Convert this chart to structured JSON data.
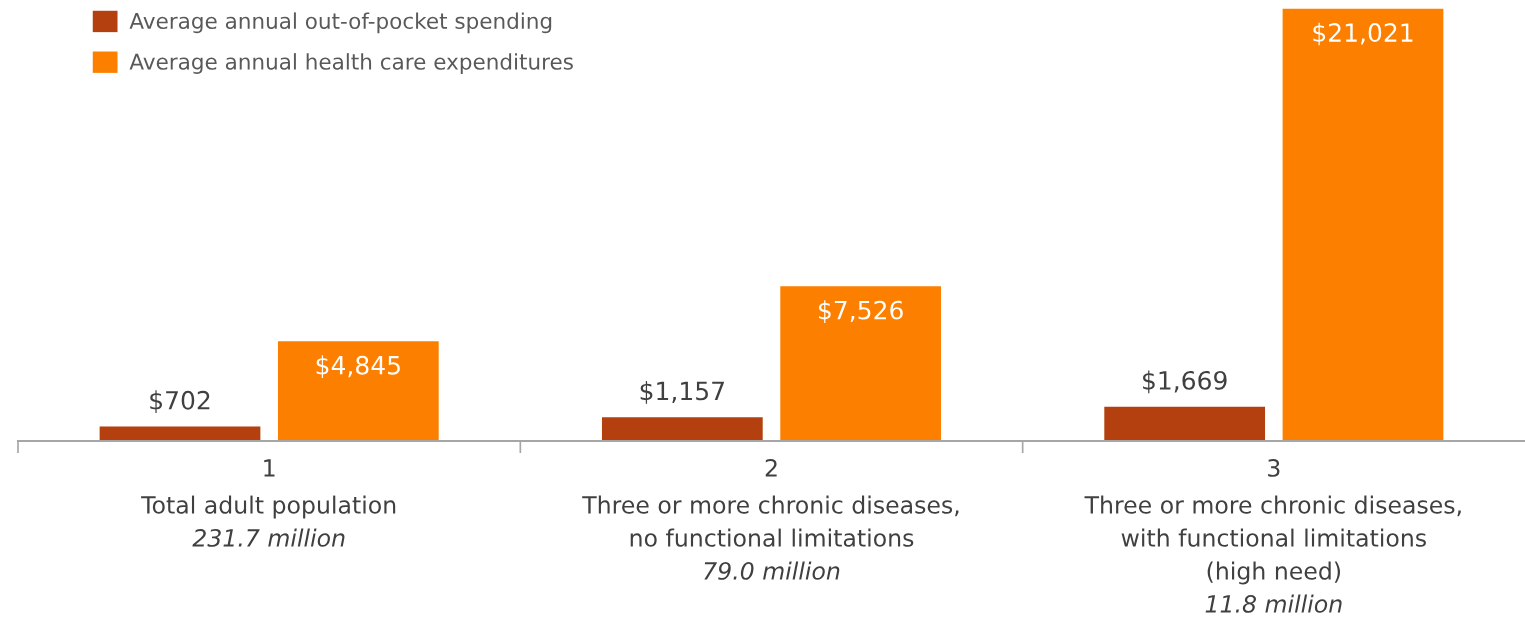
{
  "chart_data": {
    "type": "bar",
    "categories": [
      "1\nTotal adult population\n231.7 million",
      "2\nThree or more chronic diseases,\nno functional limitations\n79.0 million",
      "3\nThree or more chronic diseases,\nwith functional limitations\n(high need)\n11.8 million"
    ],
    "series": [
      {
        "name": "Average annual out-of-pocket spending",
        "color": "#b3400e",
        "values": [
          702,
          1157,
          1669
        ],
        "value_labels": [
          "$702",
          "$1,157",
          "$1,669"
        ]
      },
      {
        "name": "Average annual health care expenditures",
        "color": "#fd7f00",
        "values": [
          4845,
          7526,
          21021
        ],
        "value_labels": [
          "$4,845",
          "$7,526",
          "$21,021"
        ]
      }
    ],
    "legend": "top left",
    "grid": false,
    "tick_labels": "x"
  }
}
